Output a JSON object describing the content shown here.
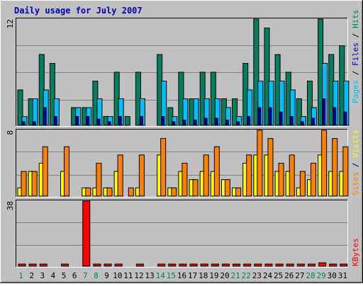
{
  "chart_data": [
    {
      "type": "bar",
      "title": "Daily usage for July 2007",
      "panel": "hits-files-pages",
      "y_max_label": "12",
      "ylim": [
        0,
        12
      ],
      "categories": [
        "1",
        "2",
        "3",
        "4",
        "5",
        "6",
        "7",
        "8",
        "9",
        "10",
        "11",
        "12",
        "13",
        "14",
        "15",
        "16",
        "17",
        "18",
        "19",
        "20",
        "21",
        "22",
        "23",
        "24",
        "25",
        "26",
        "27",
        "28",
        "29",
        "30",
        "31"
      ],
      "weekend_days": [
        "1",
        "7",
        "8",
        "14",
        "15",
        "21",
        "22",
        "28",
        "29"
      ],
      "legend": [
        "Pages",
        "Files",
        "Hits"
      ],
      "series": [
        {
          "name": "Hits",
          "color": "#00805c",
          "values": [
            4,
            3,
            8,
            7,
            0,
            2,
            2,
            5,
            1,
            6,
            1,
            6,
            0,
            8,
            2,
            6,
            3,
            6,
            6,
            3,
            3,
            7,
            12,
            11,
            8,
            6,
            3,
            5,
            12,
            8,
            9
          ]
        },
        {
          "name": "Files",
          "color": "#00c0ff",
          "values": [
            1,
            3,
            4,
            3,
            0,
            2,
            2,
            3,
            1,
            3,
            0,
            3,
            0,
            5,
            1,
            3,
            3,
            3,
            3,
            2,
            1,
            4,
            5,
            5,
            5,
            4,
            1,
            2,
            7,
            5,
            5
          ]
        },
        {
          "name": "Pages",
          "color": "#0000b4",
          "values": [
            0.4,
            0.4,
            2,
            1,
            0,
            1,
            1,
            0.7,
            0.4,
            1,
            0,
            1,
            0,
            1,
            0.4,
            0.6,
            0.6,
            0.8,
            0.8,
            0.6,
            0.4,
            1,
            2,
            2,
            1.5,
            1,
            0.4,
            0.8,
            3,
            2,
            1.5
          ]
        }
      ]
    },
    {
      "type": "bar",
      "panel": "visits-sites",
      "y_max_label": "8",
      "ylim": [
        0,
        8
      ],
      "categories": [
        "1",
        "2",
        "3",
        "4",
        "5",
        "6",
        "7",
        "8",
        "9",
        "10",
        "11",
        "12",
        "13",
        "14",
        "15",
        "16",
        "17",
        "18",
        "19",
        "20",
        "21",
        "22",
        "23",
        "24",
        "25",
        "26",
        "27",
        "28",
        "29",
        "30",
        "31"
      ],
      "legend": [
        "Sites",
        "Visits"
      ],
      "series": [
        {
          "name": "Sites",
          "color": "#ffff00",
          "values": [
            1,
            3,
            4,
            0,
            3,
            0,
            1,
            1,
            1,
            3,
            0,
            1,
            0,
            5,
            1,
            3,
            2,
            3,
            3,
            2,
            1,
            4,
            5,
            5,
            3,
            3,
            1,
            2,
            5,
            3,
            3
          ]
        },
        {
          "name": "Visits",
          "color": "#ff8000",
          "values": [
            3,
            3,
            6,
            0,
            6,
            0,
            1,
            4,
            1,
            5,
            1,
            5,
            0,
            7,
            1,
            4,
            2,
            5,
            6,
            2,
            1,
            5,
            8,
            7,
            4,
            5,
            3,
            4,
            8,
            7,
            6
          ]
        }
      ]
    },
    {
      "type": "bar",
      "panel": "kbytes",
      "y_max_label": "38",
      "ylim": [
        0,
        38
      ],
      "categories": [
        "1",
        "2",
        "3",
        "4",
        "5",
        "6",
        "7",
        "8",
        "9",
        "10",
        "11",
        "12",
        "13",
        "14",
        "15",
        "16",
        "17",
        "18",
        "19",
        "20",
        "21",
        "22",
        "23",
        "24",
        "25",
        "26",
        "27",
        "28",
        "29",
        "30",
        "31"
      ],
      "legend": [
        "KBytes"
      ],
      "series": [
        {
          "name": "KBytes",
          "color": "#ff0000",
          "values": [
            0.5,
            1.2,
            1,
            0,
            0.5,
            0,
            38,
            0.5,
            0.5,
            0.8,
            0,
            0.5,
            0,
            1.2,
            0.5,
            0.6,
            0.8,
            0.8,
            0.8,
            0.6,
            0.5,
            0.8,
            1.2,
            1.2,
            1,
            1.2,
            0.5,
            0.8,
            2,
            1,
            1
          ]
        }
      ]
    }
  ]
}
